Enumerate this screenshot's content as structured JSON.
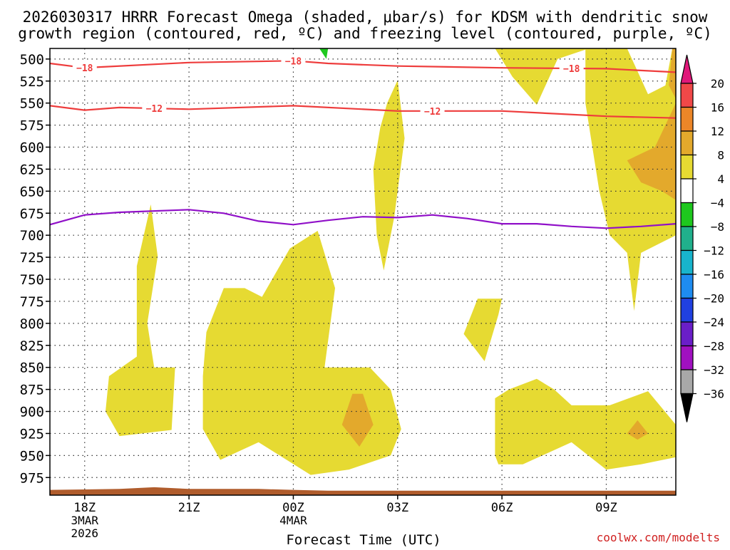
{
  "chart_data": {
    "type": "contour",
    "title_line1": "2026030317 HRRR Forecast Omega (shaded, μbar/s) for KDSM with dendritic snow",
    "title_line2": "growth region (contoured, red, ºC) and freezing level (contoured, purple, ºC)",
    "xlabel": "Forecast Time (UTC)",
    "credit": "coolwx.com/modelts",
    "pressure_axis": {
      "range": [
        488,
        995
      ],
      "ticks": [
        500,
        525,
        550,
        575,
        600,
        625,
        650,
        675,
        700,
        725,
        750,
        775,
        800,
        825,
        850,
        875,
        900,
        925,
        950,
        975
      ]
    },
    "time_axis": {
      "range_hours_after_18z": [
        -1,
        17
      ],
      "ticks": [
        {
          "hour": 0,
          "label": "18Z",
          "date": "3MAR",
          "year": "2026"
        },
        {
          "hour": 3,
          "label": "21Z",
          "date": "",
          "year": ""
        },
        {
          "hour": 6,
          "label": "00Z",
          "date": "4MAR",
          "year": ""
        },
        {
          "hour": 9,
          "label": "03Z",
          "date": "",
          "year": ""
        },
        {
          "hour": 12,
          "label": "06Z",
          "date": "",
          "year": ""
        },
        {
          "hour": 15,
          "label": "09Z",
          "date": "",
          "year": ""
        }
      ]
    },
    "colorbar": {
      "labels": [
        "20",
        "16",
        "12",
        "8",
        "4",
        "−4",
        "−8",
        "−12",
        "−16",
        "−20",
        "−24",
        "−28",
        "−32",
        "−36"
      ],
      "bins": [
        {
          "range": [
            16,
            20
          ],
          "color": "#f04848"
        },
        {
          "range": [
            12,
            16
          ],
          "color": "#ec8628"
        },
        {
          "range": [
            8,
            12
          ],
          "color": "#e3a92c"
        },
        {
          "range": [
            4,
            8
          ],
          "color": "#e6da32"
        },
        {
          "range": [
            -4,
            4
          ],
          "color": "#ffffff"
        },
        {
          "range": [
            -8,
            -4
          ],
          "color": "#1ec81e"
        },
        {
          "range": [
            -12,
            -8
          ],
          "color": "#20b08c"
        },
        {
          "range": [
            -16,
            -12
          ],
          "color": "#18b4cc"
        },
        {
          "range": [
            -20,
            -16
          ],
          "color": "#1e8cf0"
        },
        {
          "range": [
            -24,
            -20
          ],
          "color": "#2040e0"
        },
        {
          "range": [
            -28,
            -24
          ],
          "color": "#6a1ec8"
        },
        {
          "range": [
            -32,
            -28
          ],
          "color": "#a010c0"
        },
        {
          "range": [
            -36,
            -32
          ],
          "color": "#a8a8a8"
        }
      ],
      "over_color": "#e0187a",
      "under_color": "#000000"
    },
    "contours": {
      "dgz_minus18": {
        "value": -18,
        "label": "−18",
        "color": "#ee3c3c",
        "points": [
          [
            -1,
            505
          ],
          [
            0,
            510
          ],
          [
            3,
            504
          ],
          [
            6,
            502
          ],
          [
            7,
            505
          ],
          [
            9,
            508
          ],
          [
            12,
            510
          ],
          [
            15,
            511
          ],
          [
            17,
            515
          ]
        ],
        "label_positions": [
          [
            0,
            510
          ],
          [
            6,
            502
          ],
          [
            14,
            511
          ]
        ]
      },
      "dgz_minus12": {
        "value": -12,
        "label": "−12",
        "color": "#ee3c3c",
        "points": [
          [
            -1,
            553
          ],
          [
            0,
            558
          ],
          [
            1,
            555
          ],
          [
            3,
            557
          ],
          [
            6,
            553
          ],
          [
            9,
            559
          ],
          [
            12,
            559
          ],
          [
            15,
            565
          ],
          [
            17,
            567
          ]
        ],
        "label_positions": [
          [
            2,
            556
          ],
          [
            10,
            559
          ]
        ]
      },
      "freezing_level": {
        "value": 0,
        "color": "#9010c8",
        "points": [
          [
            -1,
            688
          ],
          [
            0,
            677
          ],
          [
            1,
            674
          ],
          [
            3,
            671
          ],
          [
            4,
            675
          ],
          [
            5,
            684
          ],
          [
            6,
            688
          ],
          [
            7,
            683
          ],
          [
            8,
            679
          ],
          [
            9,
            680
          ],
          [
            10,
            677
          ],
          [
            11,
            681
          ],
          [
            12,
            687
          ],
          [
            13,
            687
          ],
          [
            14,
            690
          ],
          [
            15,
            692
          ],
          [
            16,
            690
          ],
          [
            17,
            687
          ]
        ]
      }
    },
    "omega_regions": [
      {
        "level": "4-8",
        "points": [
          [
            1.6,
            835
          ],
          [
            0.7,
            860
          ],
          [
            0.6,
            900
          ],
          [
            1,
            928
          ],
          [
            2.5,
            921
          ],
          [
            2.6,
            850
          ],
          [
            2.0,
            850
          ],
          [
            1.8,
            800
          ],
          [
            2.1,
            724
          ],
          [
            1.9,
            665
          ],
          [
            1.5,
            735
          ],
          [
            1.5,
            845
          ]
        ]
      },
      {
        "level": "4-8",
        "points": [
          [
            4.0,
            760
          ],
          [
            3.5,
            810
          ],
          [
            3.4,
            860
          ],
          [
            3.4,
            920
          ],
          [
            3.9,
            955
          ],
          [
            5.0,
            935
          ],
          [
            6.5,
            972
          ],
          [
            7.6,
            966
          ],
          [
            8.8,
            950
          ],
          [
            9.1,
            920
          ],
          [
            8.8,
            875
          ],
          [
            8.2,
            850
          ],
          [
            6.9,
            850
          ],
          [
            7.2,
            760
          ],
          [
            6.7,
            695
          ],
          [
            5.9,
            715
          ],
          [
            5.1,
            770
          ],
          [
            4.6,
            760
          ]
        ]
      },
      {
        "level": "4-8",
        "points": [
          [
            8.5,
            578
          ],
          [
            8.3,
            625
          ],
          [
            8.4,
            700
          ],
          [
            8.6,
            740
          ],
          [
            8.9,
            680
          ],
          [
            9.2,
            590
          ],
          [
            9.0,
            524
          ],
          [
            8.7,
            550
          ]
        ]
      },
      {
        "level": "4-8",
        "points": [
          [
            10.9,
            812
          ],
          [
            11.5,
            843
          ],
          [
            11.9,
            790
          ],
          [
            12.0,
            772
          ],
          [
            11.3,
            772
          ]
        ]
      },
      {
        "level": "4-8",
        "points": [
          [
            11.8,
            488
          ],
          [
            12.3,
            520
          ],
          [
            13.0,
            552
          ],
          [
            13.6,
            500
          ],
          [
            14.5,
            488
          ]
        ]
      },
      {
        "level": "4-8",
        "points": [
          [
            11.8,
            885
          ],
          [
            11.8,
            950
          ],
          [
            11.9,
            960
          ],
          [
            12.6,
            960
          ],
          [
            14.0,
            935
          ],
          [
            15.0,
            966
          ],
          [
            16.0,
            960
          ],
          [
            17.0,
            952
          ],
          [
            17.0,
            915
          ],
          [
            16.2,
            877
          ],
          [
            15.1,
            893
          ],
          [
            14.0,
            893
          ],
          [
            13.5,
            875
          ],
          [
            13.0,
            863
          ],
          [
            12.2,
            875
          ]
        ]
      },
      {
        "level": "4-8",
        "points": [
          [
            14.4,
            488
          ],
          [
            14.4,
            550
          ],
          [
            14.8,
            650
          ],
          [
            15.1,
            700
          ],
          [
            15.6,
            720
          ],
          [
            15.8,
            786
          ],
          [
            16.0,
            720
          ],
          [
            17.0,
            700
          ],
          [
            17.0,
            488
          ],
          [
            16.9,
            488
          ],
          [
            16.7,
            530
          ],
          [
            16.2,
            540
          ],
          [
            15.6,
            488
          ]
        ]
      },
      {
        "level": "8-12",
        "points": [
          [
            15.6,
            615
          ],
          [
            16.4,
            600
          ],
          [
            17.0,
            550
          ],
          [
            17.0,
            660
          ],
          [
            16.6,
            650
          ],
          [
            16.0,
            640
          ]
        ]
      },
      {
        "level": "8-12",
        "points": [
          [
            17.0,
            488
          ],
          [
            17.0,
            545
          ],
          [
            16.8,
            530
          ],
          [
            16.9,
            488
          ]
        ]
      },
      {
        "level": "8-12",
        "points": [
          [
            7.7,
            880
          ],
          [
            7.4,
            915
          ],
          [
            7.9,
            940
          ],
          [
            8.3,
            915
          ],
          [
            8.0,
            880
          ]
        ]
      },
      {
        "level": "8-12",
        "points": [
          [
            15.9,
            910
          ],
          [
            15.6,
            925
          ],
          [
            15.9,
            932
          ],
          [
            16.2,
            925
          ]
        ]
      },
      {
        "level": "-8--4",
        "points": [
          [
            6.75,
            488
          ],
          [
            7.0,
            488
          ],
          [
            6.95,
            500
          ]
        ]
      }
    ],
    "terrain": {
      "color": "#b05c2c",
      "surface_pressure": [
        [
          -1,
          989
        ],
        [
          1,
          988
        ],
        [
          2,
          986
        ],
        [
          3,
          988
        ],
        [
          5,
          988
        ],
        [
          6,
          989
        ],
        [
          7,
          990
        ],
        [
          17,
          990
        ]
      ]
    }
  }
}
